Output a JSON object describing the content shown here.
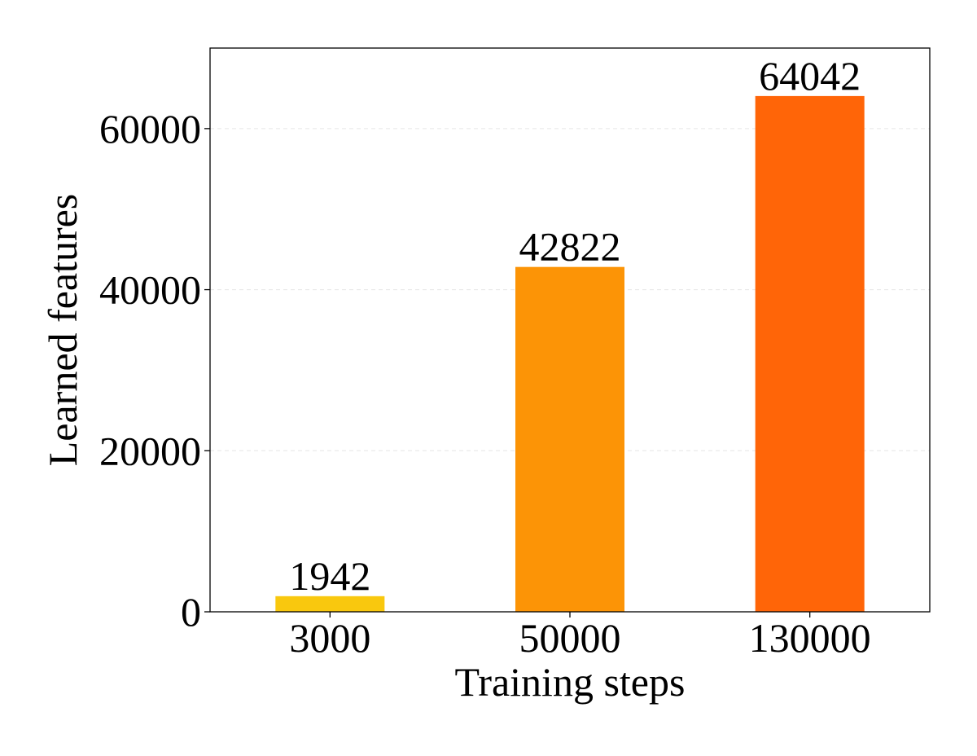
{
  "chart_data": {
    "type": "bar",
    "categories": [
      "3000",
      "50000",
      "130000"
    ],
    "values": [
      1942,
      42822,
      64042
    ],
    "data_labels": [
      "1942",
      "42822",
      "64042"
    ],
    "colors": [
      "#f9c80e",
      "#fc9406",
      "#ff6508"
    ],
    "title": "",
    "xlabel": "Training steps",
    "ylabel": "Learned features",
    "ylim": [
      0,
      70000
    ],
    "yticks": [
      0,
      20000,
      40000,
      60000
    ],
    "ytick_labels": [
      "0",
      "20000",
      "40000",
      "60000"
    ],
    "grid": "horizontal dashed",
    "legend": "none"
  }
}
